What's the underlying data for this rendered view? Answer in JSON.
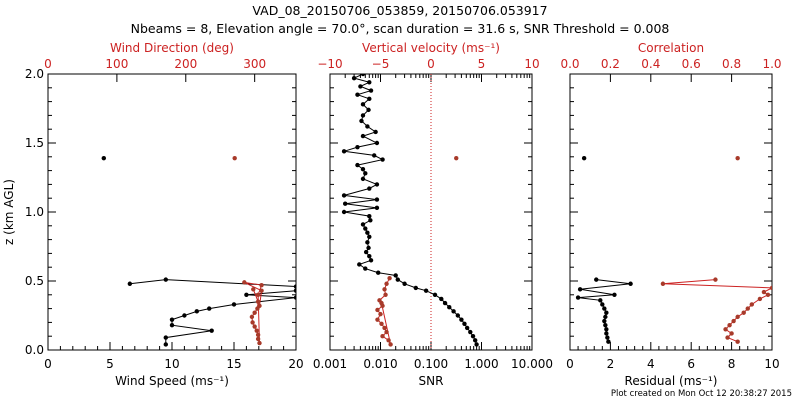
{
  "title_line1": "VAD_08_20150706_053859, 20150706.053917",
  "title_line2": "Nbeams = 8, Elevation angle = 70.0°, scan duration = 31.6 s, SNR Threshold = 0.008",
  "footer": "Plot created on Mon Oct 12 20:38:27 2015",
  "colors": {
    "black": "#000000",
    "red": "#cc2222",
    "marker_red": "#a83a2a"
  },
  "chart_data": [
    {
      "type": "line",
      "id": "speed_dir",
      "ylabel": "z (km AGL)",
      "ylim": [
        0,
        2.0
      ],
      "yticks": [
        0.0,
        0.5,
        1.0,
        1.5,
        2.0
      ],
      "ytick_labels": [
        "0.0",
        "0.5",
        "1.0",
        "1.5",
        "2.0"
      ],
      "bottom_axis": {
        "label": "Wind Speed (ms⁻¹)",
        "range": [
          0,
          20
        ],
        "ticks": [
          0,
          5,
          10,
          15,
          20
        ],
        "tick_labels": [
          "0",
          "5",
          "10",
          "15",
          "20"
        ]
      },
      "top_axis": {
        "label": "Wind Direction (deg)",
        "range": [
          0,
          360
        ],
        "ticks": [
          0,
          100,
          200,
          300
        ],
        "tick_labels": [
          "0",
          "100",
          "200",
          "300"
        ]
      },
      "series": [
        {
          "name": "Wind Speed",
          "axis": "bottom",
          "color": "#000000",
          "points": [
            [
              4.5,
              1.39
            ],
            [
              6.6,
              0.48
            ],
            [
              9.5,
              0.51
            ],
            [
              20,
              0.46
            ],
            [
              20,
              0.43
            ],
            [
              16,
              0.4
            ],
            [
              20,
              0.38
            ],
            [
              15,
              0.33
            ],
            [
              13,
              0.3
            ],
            [
              12,
              0.28
            ],
            [
              11,
              0.25
            ],
            [
              10,
              0.22
            ],
            [
              10,
              0.18
            ],
            [
              13.2,
              0.14
            ],
            [
              9.5,
              0.09
            ],
            [
              9.5,
              0.04
            ]
          ]
        },
        {
          "name": "Wind Direction",
          "axis": "top",
          "color": "#a83a2a",
          "points": [
            [
              271,
              1.39
            ],
            [
              298,
              0.44
            ],
            [
              305,
              0.35
            ],
            [
              304,
              0.3
            ],
            [
              300,
              0.27
            ],
            [
              296,
              0.24
            ],
            [
              297,
              0.2
            ],
            [
              300,
              0.17
            ],
            [
              303,
              0.14
            ],
            [
              305,
              0.11
            ],
            [
              305,
              0.08
            ],
            [
              307,
              0.05
            ],
            [
              305,
              0.4
            ],
            [
              310,
              0.47
            ],
            [
              285,
              0.49
            ],
            [
              310,
              0.43
            ],
            [
              307,
              0.32
            ]
          ]
        }
      ]
    },
    {
      "type": "line",
      "id": "vvel_snr",
      "ylim": [
        0,
        2.0
      ],
      "bottom_axis": {
        "label": "SNR",
        "scale": "log",
        "range": [
          0.001,
          10
        ],
        "ticks": [
          0.001,
          0.01,
          0.1,
          1,
          10
        ],
        "tick_labels": [
          "0.001",
          "0.010",
          "0.100",
          "1.000",
          "10.000"
        ]
      },
      "top_axis": {
        "label": "Vertical velocity (ms⁻¹)",
        "range": [
          -10,
          10
        ],
        "ticks": [
          -10,
          -5,
          0,
          5,
          10
        ],
        "tick_labels": [
          "−10",
          "−5",
          "0",
          "5",
          "10"
        ]
      },
      "reference_line": {
        "axis": "top",
        "value": 0,
        "style": "dotted",
        "color": "#cc2222"
      },
      "series": [
        {
          "name": "SNR",
          "axis": "bottom",
          "color": "#000000",
          "points": [
            [
              0.0045,
              2.0
            ],
            [
              0.003,
              1.97
            ],
            [
              0.006,
              1.94
            ],
            [
              0.004,
              1.91
            ],
            [
              0.0065,
              1.88
            ],
            [
              0.0035,
              1.85
            ],
            [
              0.006,
              1.82
            ],
            [
              0.0045,
              1.78
            ],
            [
              0.0058,
              1.74
            ],
            [
              0.0045,
              1.7
            ],
            [
              0.0042,
              1.66
            ],
            [
              0.0055,
              1.62
            ],
            [
              0.008,
              1.58
            ],
            [
              0.0045,
              1.55
            ],
            [
              0.0085,
              1.5
            ],
            [
              0.0035,
              1.47
            ],
            [
              0.0019,
              1.44
            ],
            [
              0.0075,
              1.41
            ],
            [
              0.011,
              1.38
            ],
            [
              0.0035,
              1.34
            ],
            [
              0.0045,
              1.31
            ],
            [
              0.005,
              1.28
            ],
            [
              0.0045,
              1.24
            ],
            [
              0.0085,
              1.2
            ],
            [
              0.006,
              1.17
            ],
            [
              0.0019,
              1.12
            ],
            [
              0.0085,
              1.09
            ],
            [
              0.002,
              1.06
            ],
            [
              0.0085,
              1.03
            ],
            [
              0.0019,
              1.0
            ],
            [
              0.006,
              0.97
            ],
            [
              0.0063,
              0.94
            ],
            [
              0.0045,
              0.91
            ],
            [
              0.005,
              0.88
            ],
            [
              0.0055,
              0.85
            ],
            [
              0.006,
              0.82
            ],
            [
              0.0055,
              0.78
            ],
            [
              0.0058,
              0.74
            ],
            [
              0.0052,
              0.71
            ],
            [
              0.006,
              0.68
            ],
            [
              0.0065,
              0.65
            ],
            [
              0.0038,
              0.62
            ],
            [
              0.005,
              0.59
            ],
            [
              0.009,
              0.56
            ],
            [
              0.02,
              0.54
            ],
            [
              0.022,
              0.51
            ],
            [
              0.03,
              0.48
            ],
            [
              0.05,
              0.45
            ],
            [
              0.08,
              0.43
            ],
            [
              0.12,
              0.4
            ],
            [
              0.16,
              0.37
            ],
            [
              0.19,
              0.34
            ],
            [
              0.23,
              0.31
            ],
            [
              0.28,
              0.28
            ],
            [
              0.34,
              0.25
            ],
            [
              0.4,
              0.22
            ],
            [
              0.46,
              0.19
            ],
            [
              0.52,
              0.16
            ],
            [
              0.6,
              0.13
            ],
            [
              0.68,
              0.1
            ],
            [
              0.75,
              0.07
            ],
            [
              0.8,
              0.04
            ]
          ]
        },
        {
          "name": "Vertical velocity",
          "axis": "top",
          "color": "#a83a2a",
          "points": [
            [
              2.5,
              1.39
            ],
            [
              -4.1,
              0.52
            ],
            [
              -4.4,
              0.48
            ],
            [
              -4.6,
              0.44
            ],
            [
              -4.5,
              0.4
            ],
            [
              -5.1,
              0.36
            ],
            [
              -4.8,
              0.32
            ],
            [
              -5.3,
              0.29
            ],
            [
              -5.0,
              0.26
            ],
            [
              -5.3,
              0.22
            ],
            [
              -4.9,
              0.19
            ],
            [
              -4.6,
              0.16
            ],
            [
              -4.4,
              0.13
            ],
            [
              -4.8,
              0.1
            ],
            [
              -4.2,
              0.07
            ],
            [
              -4.0,
              0.04
            ],
            [
              -4.9,
              0.34
            ]
          ]
        }
      ]
    },
    {
      "type": "line",
      "id": "resid_corr",
      "ylim": [
        0,
        2.0
      ],
      "bottom_axis": {
        "label": "Residual (ms⁻¹)",
        "range": [
          0,
          10
        ],
        "ticks": [
          0,
          2,
          4,
          6,
          8,
          10
        ],
        "tick_labels": [
          "0",
          "2",
          "4",
          "6",
          "8",
          "10"
        ]
      },
      "top_axis": {
        "label": "Correlation",
        "range": [
          0,
          1.0
        ],
        "ticks": [
          0.0,
          0.2,
          0.4,
          0.6,
          0.8,
          1.0
        ],
        "tick_labels": [
          "0.0",
          "0.2",
          "0.4",
          "0.6",
          "0.8",
          "1.0"
        ]
      },
      "series": [
        {
          "name": "Residual",
          "axis": "bottom",
          "color": "#000000",
          "points": [
            [
              0.7,
              1.39
            ],
            [
              1.3,
              0.51
            ],
            [
              3.0,
              0.48
            ],
            [
              0.5,
              0.44
            ],
            [
              2.2,
              0.4
            ],
            [
              0.4,
              0.38
            ],
            [
              1.5,
              0.36
            ],
            [
              1.6,
              0.33
            ],
            [
              1.7,
              0.3
            ],
            [
              1.8,
              0.27
            ],
            [
              1.75,
              0.24
            ],
            [
              1.7,
              0.21
            ],
            [
              1.75,
              0.18
            ],
            [
              1.8,
              0.15
            ],
            [
              1.8,
              0.12
            ],
            [
              1.85,
              0.09
            ],
            [
              1.9,
              0.06
            ]
          ]
        },
        {
          "name": "Correlation",
          "axis": "top",
          "color": "#a83a2a",
          "points": [
            [
              0.83,
              1.39
            ],
            [
              0.72,
              0.51
            ],
            [
              0.46,
              0.48
            ],
            [
              1.0,
              0.45
            ],
            [
              0.96,
              0.42
            ],
            [
              0.98,
              0.4
            ],
            [
              0.94,
              0.37
            ],
            [
              0.9,
              0.33
            ],
            [
              0.88,
              0.3
            ],
            [
              0.86,
              0.27
            ],
            [
              0.83,
              0.24
            ],
            [
              0.81,
              0.21
            ],
            [
              0.79,
              0.18
            ],
            [
              0.77,
              0.15
            ],
            [
              0.8,
              0.12
            ],
            [
              0.78,
              0.09
            ],
            [
              0.83,
              0.06
            ]
          ]
        }
      ]
    }
  ]
}
